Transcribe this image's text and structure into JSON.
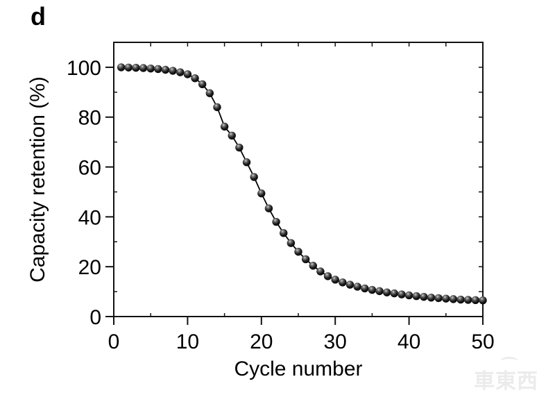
{
  "panel_label": "d",
  "watermark": {
    "text": "車東西"
  },
  "chart_data": {
    "type": "line",
    "title": "",
    "xlabel": "Cycle number",
    "ylabel": "Capacity retention (%)",
    "xlim": [
      0,
      50
    ],
    "ylim": [
      0,
      110
    ],
    "x_major_ticks": [
      0,
      10,
      20,
      30,
      40,
      50
    ],
    "x_minor_ticks": [
      5,
      15,
      25,
      35,
      45
    ],
    "y_major_ticks": [
      0,
      20,
      40,
      60,
      80,
      100
    ],
    "y_minor_ticks": [
      10,
      30,
      50,
      70,
      90
    ],
    "grid": false,
    "legend": null,
    "marker_style": "3d-sphere",
    "line_color": "#000000",
    "frame": "full-box",
    "series": [
      {
        "name": "Capacity retention",
        "x": [
          1,
          2,
          3,
          4,
          5,
          6,
          7,
          8,
          9,
          10,
          11,
          12,
          13,
          14,
          15,
          16,
          17,
          18,
          19,
          20,
          21,
          22,
          23,
          24,
          25,
          26,
          27,
          28,
          29,
          30,
          31,
          32,
          33,
          34,
          35,
          36,
          37,
          38,
          39,
          40,
          41,
          42,
          43,
          44,
          45,
          46,
          47,
          48,
          49,
          50
        ],
        "y": [
          100.0,
          99.9,
          99.8,
          99.7,
          99.5,
          99.3,
          99.0,
          98.6,
          98.0,
          97.2,
          95.6,
          93.2,
          89.6,
          84.0,
          76.2,
          72.6,
          67.8,
          61.9,
          56.0,
          49.4,
          43.4,
          38.0,
          33.5,
          29.5,
          26.0,
          23.0,
          20.4,
          18.1,
          16.2,
          14.8,
          13.7,
          12.8,
          12.0,
          11.3,
          10.7,
          10.2,
          9.7,
          9.3,
          8.9,
          8.5,
          8.2,
          7.9,
          7.6,
          7.4,
          7.2,
          7.0,
          6.8,
          6.7,
          6.6,
          6.5
        ]
      }
    ]
  }
}
